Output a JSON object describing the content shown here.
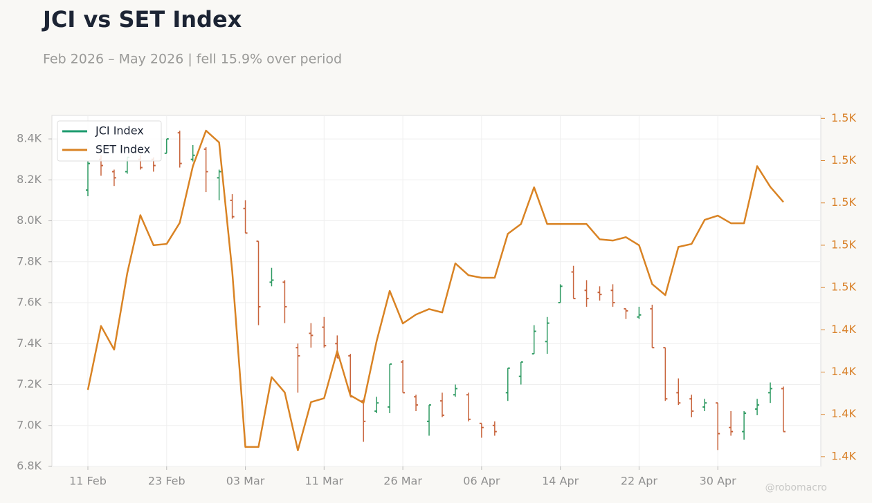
{
  "chart_data": {
    "type": "ohlc",
    "title": "JCI vs SET Index",
    "subtitle": "Feb 2026 – May 2026 | fell 15.9% over period",
    "watermark": "@robomacro",
    "categories": [
      "11 Feb",
      null,
      null,
      null,
      null,
      null,
      "23 Feb",
      null,
      null,
      null,
      null,
      null,
      "03 Mar",
      null,
      null,
      null,
      null,
      null,
      "11 Mar",
      null,
      null,
      null,
      null,
      null,
      "26 Mar",
      null,
      null,
      null,
      null,
      null,
      "06 Apr",
      null,
      null,
      null,
      null,
      null,
      "14 Apr",
      null,
      null,
      null,
      null,
      null,
      "22 Apr",
      null,
      null,
      null,
      null,
      null,
      "30 Apr",
      null,
      null,
      null,
      null,
      null
    ],
    "series": [
      {
        "name": "JCI Index",
        "type": "ohlc",
        "color": "#1a9a6c",
        "up_color": "#2e9a62",
        "down_color": "#c8643c",
        "open": [
          8150,
          8300,
          8240,
          8240,
          8300,
          8300,
          8330,
          8430,
          8300,
          8350,
          8210,
          8100,
          8060,
          7900,
          7700,
          7700,
          7380,
          7450,
          7480,
          7400,
          7340,
          7120,
          7070,
          7090,
          7310,
          7140,
          7020,
          7120,
          7150,
          7150,
          7010,
          7000,
          7160,
          7240,
          7350,
          7410,
          7600,
          7750,
          7660,
          7650,
          7660,
          7570,
          7530,
          7570,
          7380,
          7160,
          7130,
          7090,
          7110,
          6990,
          6970,
          7080,
          7160,
          7180
        ],
        "high": [
          8290,
          8320,
          8250,
          8310,
          8320,
          8310,
          8400,
          8440,
          8370,
          8360,
          8250,
          8130,
          8100,
          7900,
          7770,
          7710,
          7400,
          7500,
          7530,
          7440,
          7350,
          7130,
          7140,
          7300,
          7320,
          7150,
          7100,
          7160,
          7200,
          7160,
          7010,
          7020,
          7280,
          7310,
          7490,
          7530,
          7690,
          7780,
          7710,
          7680,
          7690,
          7570,
          7580,
          7590,
          7380,
          7230,
          7150,
          7130,
          7110,
          7070,
          7070,
          7130,
          7210,
          7190
        ],
        "low": [
          8120,
          8220,
          8170,
          8230,
          8250,
          8240,
          8330,
          8260,
          8290,
          8140,
          8100,
          8010,
          7940,
          7490,
          7680,
          7500,
          7160,
          7380,
          7380,
          7330,
          7140,
          6920,
          7060,
          7060,
          7160,
          7070,
          6950,
          7040,
          7140,
          7020,
          6940,
          6950,
          7120,
          7200,
          7350,
          7350,
          7600,
          7620,
          7580,
          7610,
          7580,
          7520,
          7520,
          7380,
          7120,
          7100,
          7040,
          7070,
          6880,
          6950,
          6930,
          7050,
          7110,
          6970
        ],
        "close": [
          8280,
          8270,
          8210,
          8310,
          8260,
          8270,
          8400,
          8280,
          8320,
          8240,
          8240,
          8020,
          7940,
          7580,
          7710,
          7580,
          7340,
          7440,
          7390,
          7330,
          7140,
          7020,
          7110,
          7300,
          7160,
          7100,
          7100,
          7050,
          7180,
          7030,
          6990,
          6970,
          7280,
          7310,
          7460,
          7500,
          7680,
          7620,
          7620,
          7640,
          7600,
          7560,
          7540,
          7380,
          7130,
          7110,
          7070,
          7110,
          6960,
          6970,
          7060,
          7100,
          7180,
          6970
        ]
      },
      {
        "name": "SET Index",
        "type": "line",
        "axis": "y2",
        "color": "#d98324",
        "values": [
          1435.8,
          1450.9,
          1445.3,
          1463.4,
          1477.1,
          1470.0,
          1470.3,
          1475.3,
          1488.7,
          1497.1,
          1494.3,
          1463.8,
          1422.3,
          1422.3,
          1438.8,
          1435.2,
          1421.5,
          1432.9,
          1433.8,
          1445.0,
          1434.5,
          1432.7,
          1447.3,
          1459.2,
          1451.5,
          1453.6,
          1454.9,
          1454.1,
          1465.7,
          1462.9,
          1462.3,
          1462.3,
          1472.7,
          1475.0,
          1483.7,
          1475.0,
          1475.0,
          1475.0,
          1475.0,
          1471.4,
          1471.1,
          1471.9,
          1470.0,
          1460.8,
          1458.2,
          1469.6,
          1470.3,
          1476.0,
          1477.0,
          1475.2,
          1475.2,
          1488.7,
          1483.8,
          1480.2
        ]
      }
    ],
    "ylim": [
      6800,
      8515
    ],
    "yticks": [
      {
        "value": 6800,
        "label": "6.8K"
      },
      {
        "value": 7000,
        "label": "7.0K"
      },
      {
        "value": 7200,
        "label": "7.2K"
      },
      {
        "value": 7400,
        "label": "7.4K"
      },
      {
        "value": 7600,
        "label": "7.6K"
      },
      {
        "value": 7800,
        "label": "7.8K"
      },
      {
        "value": 8000,
        "label": "8.0K"
      },
      {
        "value": 8200,
        "label": "8.2K"
      },
      {
        "value": 8400,
        "label": "8.4K"
      }
    ],
    "y2lim": [
      1417.7,
      1500.7
    ],
    "y2ticks": [
      {
        "value": 1420,
        "label": "1.4K"
      },
      {
        "value": 1430,
        "label": "1.4K"
      },
      {
        "value": 1440,
        "label": "1.4K"
      },
      {
        "value": 1450,
        "label": "1.4K"
      },
      {
        "value": 1460,
        "label": "1.5K"
      },
      {
        "value": 1470,
        "label": "1.5K"
      },
      {
        "value": 1480,
        "label": "1.5K"
      },
      {
        "value": 1490,
        "label": "1.5K"
      },
      {
        "value": 1500,
        "label": "1.5K"
      }
    ],
    "y2_color": "#d9822b",
    "grid": true,
    "legend": "upper left"
  }
}
